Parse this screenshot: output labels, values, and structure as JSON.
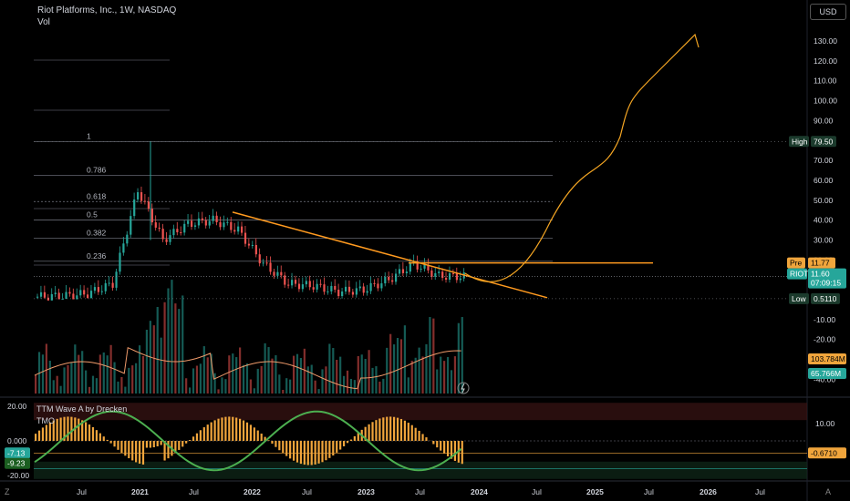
{
  "header": {
    "symbol_line": "Riot Platforms, Inc., 1W, NASDAQ",
    "vol_label": "Vol",
    "currency_button": "USD"
  },
  "price_axis": {
    "ticks": [
      "130.00",
      "120.00",
      "110.00",
      "100.00",
      "90.00",
      "80.00",
      "70.00",
      "60.00",
      "50.00",
      "40.00",
      "30.00",
      "20.00",
      "10.00",
      "0.00",
      "-10.00",
      "-20.00",
      "-30.00",
      "-40.00"
    ],
    "high_label": "High",
    "high_value": "79.50",
    "low_label": "Low",
    "low_value": "0.5110",
    "pre_label": "Pre",
    "pre_value": "11.77",
    "symbol_tag": "RIOT",
    "last_price": "11.60",
    "countdown": "07:09:15",
    "vol_ma_value": "103.784M",
    "volume_value": "65.766M",
    "colors": {
      "high_low_tag": "#1b3a2c",
      "pre_tag": "#f0a53c",
      "price_tag": "#26a69a"
    }
  },
  "fib_levels": [
    {
      "label": "1",
      "price": 79.5
    },
    {
      "label": "0.786",
      "price": 62.5
    },
    {
      "label": "0.618",
      "price": 49.3
    },
    {
      "label": "0.5",
      "price": 40.1
    },
    {
      "label": "0.382",
      "price": 30.8
    },
    {
      "label": "0.236",
      "price": 19.3
    }
  ],
  "oscillator": {
    "title": "TTM Wave A by Drecken",
    "subtitle": "TMO",
    "left_ticks": [
      "20.00",
      "0.000",
      "-20.00"
    ],
    "left_tag_1": "-7.13",
    "left_tag_2": "-9.23",
    "right_ticks": [
      "10.00"
    ],
    "right_tag": "-0.6710"
  },
  "time_axis": {
    "labels": [
      "Jul",
      "2021",
      "Jul",
      "2022",
      "Jul",
      "2023",
      "Jul",
      "2024",
      "Jul",
      "2025",
      "Jul",
      "2026",
      "Jul"
    ],
    "corner_left": "Z",
    "corner_right": "A"
  },
  "chart_data": {
    "type": "candlestick",
    "title": "Riot Platforms, Inc., 1W, NASDAQ",
    "x": [
      "2020-04",
      "2020-07",
      "2020-10",
      "2021-01",
      "2021-02",
      "2021-04",
      "2021-07",
      "2021-10",
      "2021-11",
      "2022-01",
      "2022-04",
      "2022-07",
      "2022-10",
      "2023-01",
      "2023-04",
      "2023-07",
      "2023-09",
      "2023-10"
    ],
    "close": [
      1.5,
      1.8,
      3.0,
      8,
      55,
      30,
      38,
      40,
      35,
      18,
      8,
      7,
      4,
      5,
      10,
      18,
      12,
      11.6
    ],
    "high_marker": 79.5,
    "low_marker": 0.511,
    "trendlines": [
      {
        "name": "descending",
        "from": [
          "2021-11",
          44
        ],
        "to": [
          "2024-05",
          1
        ]
      },
      {
        "name": "horizontal",
        "from": [
          "2023-07",
          18.5
        ],
        "to": [
          "2025-05",
          18.5
        ]
      }
    ],
    "projection": "hand-drawn curve rising to 130 by 2026",
    "ylim": [
      -40,
      135
    ],
    "grid": false
  }
}
